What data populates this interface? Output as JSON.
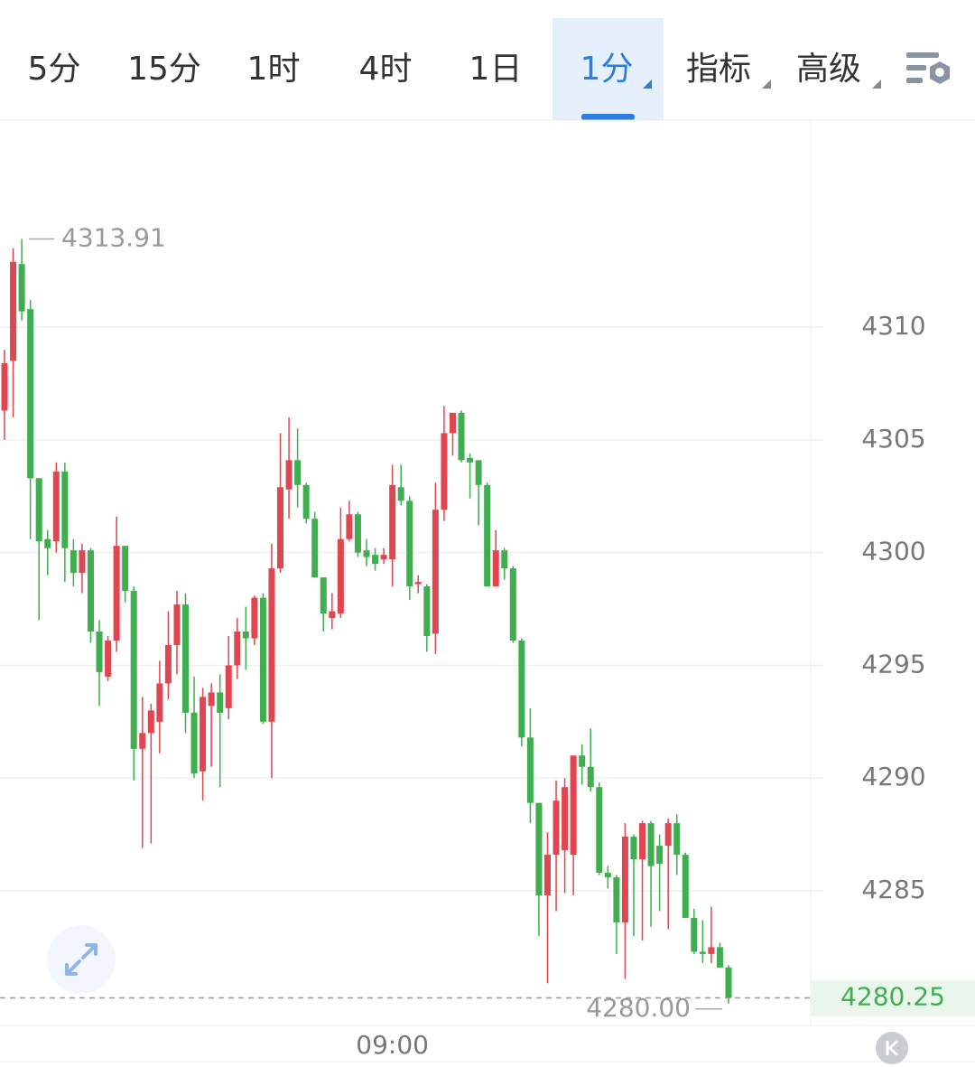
{
  "tabs": [
    "5分",
    "15分",
    "1时",
    "4时",
    "1日",
    "1分",
    "指标",
    "高级"
  ],
  "chart_data": {
    "type": "candlestick",
    "up_color": "#e0464f",
    "down_color": "#3fae4f",
    "ylim": [
      4279.03,
      4319.1
    ],
    "yticks": [
      4285,
      4290,
      4295,
      4300,
      4305,
      4310
    ],
    "grid": true,
    "categories": [
      null,
      null,
      null,
      null,
      null,
      null,
      null,
      null,
      null,
      null,
      null,
      null,
      null,
      null,
      null,
      null,
      null,
      null,
      null,
      null,
      null,
      null,
      null,
      null,
      null,
      null,
      null,
      null,
      null,
      null,
      null,
      null,
      null,
      null,
      null,
      null,
      null,
      null,
      null,
      null,
      null,
      null,
      null,
      null,
      null,
      "09:00",
      null,
      null,
      null,
      null,
      null,
      null,
      null,
      null,
      null,
      null,
      null,
      null,
      null,
      null,
      null,
      null,
      null,
      null,
      null,
      null,
      null,
      null,
      null,
      null,
      null,
      null,
      null,
      null,
      null,
      null,
      null,
      null,
      null,
      null,
      null,
      null,
      null,
      null,
      null
    ],
    "open": [
      4306.3,
      4308.5,
      4312.8,
      4310.8,
      4303.3,
      4300.6,
      4300.5,
      4303.6,
      4300.1,
      4299.1,
      4300.1,
      4296.5,
      4294.5,
      4296.1,
      4300.3,
      4298.3,
      4291.3,
      4292,
      4292.5,
      4294.2,
      4295.9,
      4297.7,
      4292.9,
      4290.3,
      4293.2,
      4293.8,
      4293.1,
      4295,
      4296.5,
      4296.2,
      4298,
      4292.5,
      4299.3,
      4302.8,
      4304.1,
      4303,
      4301.5,
      4298.9,
      4297.1,
      4297.3,
      4300.6,
      4301.7,
      4300.1,
      4299.9,
      4299.7,
      4299.7,
      4302.9,
      4302.3,
      4298.6,
      4298.5,
      4296.4,
      4301.9,
      4305.3,
      4306.2,
      4304.2,
      4304.1,
      4303,
      4298.5,
      4300.1,
      4299.3,
      4296.1,
      4291.8,
      4288.9,
      4284.8,
      4286.6,
      4286.8,
      4286.6,
      4291,
      4290.5,
      4289.6,
      4285.8,
      4285.6,
      4283.6,
      4287.4,
      4286.4,
      4288,
      4287,
      4287,
      4288,
      4286.6,
      4283.8,
      4282.3,
      4282.2,
      4282.5,
      4281.6
    ],
    "high": [
      4309,
      4313.5,
      4313.91,
      4311.2,
      4303.3,
      4301,
      4304,
      4304,
      4300.6,
      4300.4,
      4300.2,
      4297,
      4296.3,
      4301.6,
      4300.3,
      4298.5,
      4293.6,
      4293.3,
      4295.2,
      4297.4,
      4298.3,
      4298.2,
      4294.5,
      4294,
      4294.2,
      4294.6,
      4296.3,
      4297.1,
      4297.6,
      4298.1,
      4298.2,
      4300.4,
      4305.3,
      4306,
      4305.5,
      4303.1,
      4301.8,
      4298.9,
      4298.2,
      4302,
      4302.3,
      4301.8,
      4300.6,
      4300.2,
      4300.2,
      4303.9,
      4303.9,
      4302.5,
      4299,
      4298.6,
      4303.1,
      4306.5,
      4306.2,
      4306.3,
      4304.4,
      4304.1,
      4303.1,
      4301,
      4300.2,
      4299.4,
      4296.2,
      4293.1,
      4288.9,
      4287.6,
      4289.9,
      4290,
      4291,
      4291.5,
      4292.2,
      4289.8,
      4286.1,
      4285.7,
      4288,
      4287.5,
      4288.1,
      4288.1,
      4287.5,
      4288.2,
      4288.4,
      4286.7,
      4284.2,
      4283.7,
      4284.3,
      4282.7,
      4281.7
    ],
    "low": [
      4305,
      4306,
      4310.3,
      4300.6,
      4297,
      4299,
      4300,
      4298.7,
      4298.5,
      4298.2,
      4296,
      4293.2,
      4294.3,
      4295.6,
      4297.8,
      4289.9,
      4286.9,
      4287.1,
      4291.1,
      4293.5,
      4294.6,
      4292,
      4290,
      4289,
      4290.5,
      4289.6,
      4292.6,
      4294.4,
      4294.8,
      4295.9,
      4292.4,
      4290,
      4299.1,
      4301.5,
      4302,
      4301.3,
      4298.9,
      4296.5,
      4296.6,
      4297.1,
      4300.5,
      4299.8,
      4299.4,
      4299.2,
      4299.5,
      4298.5,
      4302.1,
      4297.9,
      4298.2,
      4295.6,
      4295.5,
      4301.4,
      4304.3,
      4304,
      4302.4,
      4301.2,
      4298.5,
      4298.5,
      4298.8,
      4296,
      4291.4,
      4288,
      4283,
      4280.9,
      4284.1,
      4284.9,
      4284.8,
      4289.7,
      4289.4,
      4285.7,
      4285.1,
      4282.2,
      4281.1,
      4283,
      4282.8,
      4283.4,
      4284.1,
      4283.3,
      4285.7,
      4283.8,
      4282.2,
      4281.8,
      4281.8,
      4281.6,
      4280.0
    ],
    "close": [
      4308.4,
      4312.9,
      4310.7,
      4303.3,
      4300.5,
      4300.2,
      4303.6,
      4300.2,
      4299.1,
      4300.1,
      4296.5,
      4294.7,
      4296.1,
      4300.3,
      4298.3,
      4291.3,
      4292,
      4293,
      4294.2,
      4295.9,
      4297.7,
      4292.9,
      4290.2,
      4293.6,
      4293.8,
      4292.9,
      4295,
      4296.5,
      4296.2,
      4298,
      4292.5,
      4299.3,
      4302.9,
      4304.1,
      4303,
      4301.5,
      4298.9,
      4297.3,
      4297.4,
      4300.6,
      4301.7,
      4300,
      4299.8,
      4299.5,
      4299.9,
      4303,
      4302.3,
      4298.5,
      4298.7,
      4296.3,
      4301.9,
      4305.3,
      4306.2,
      4304.1,
      4304,
      4303,
      4298.5,
      4300.1,
      4299.3,
      4296.1,
      4291.8,
      4288.9,
      4284.8,
      4286.6,
      4289,
      4289.6,
      4291,
      4290.5,
      4289.6,
      4285.8,
      4285.6,
      4283.6,
      4287.4,
      4286.4,
      4288,
      4286.1,
      4286.2,
      4288,
      4286.6,
      4283.8,
      4282.3,
      4282.2,
      4282.5,
      4281.6,
      4280.25
    ],
    "max_label": 4313.91,
    "min_label": {
      "value": 4280,
      "label": "4280.00"
    },
    "last_price": 4280.25
  }
}
